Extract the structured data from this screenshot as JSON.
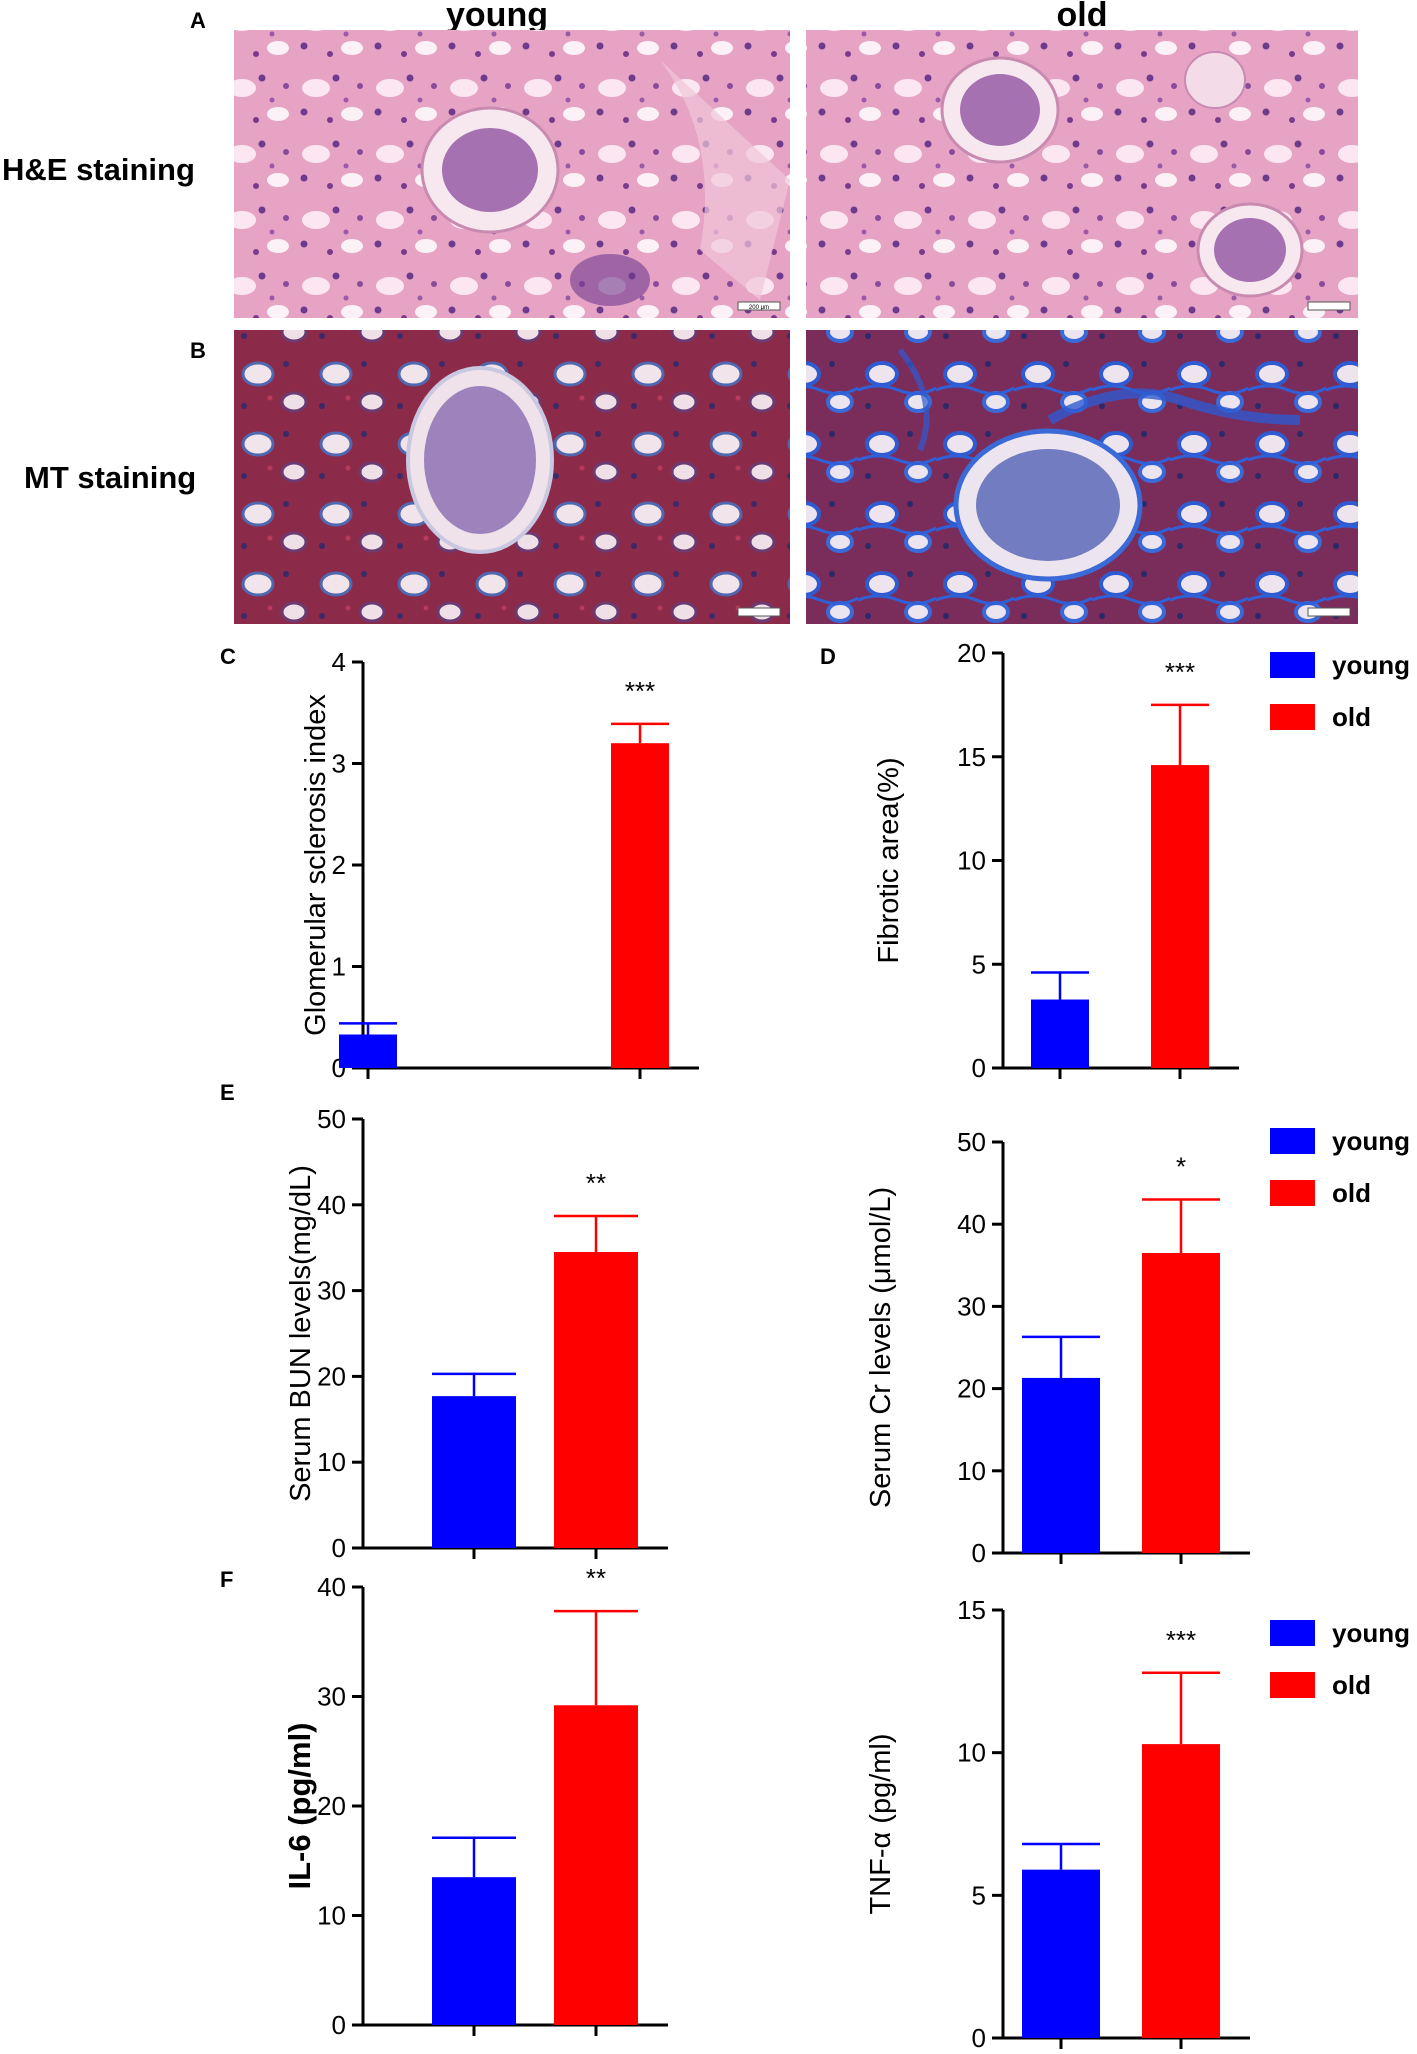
{
  "panels": {
    "A": "A",
    "B": "B",
    "C": "C",
    "D": "D",
    "E": "E",
    "F": "F"
  },
  "micrographs": {
    "columns": [
      "young",
      "old"
    ],
    "rows": [
      "H&E staining",
      "MT staining"
    ],
    "scale_bar_label": "200 μm"
  },
  "legend": {
    "young": "young",
    "old": "old"
  },
  "colors": {
    "young": "#0000ff",
    "old": "#ff0000",
    "he_base": "#e8a6c6",
    "he_dark": "#7a3a8c",
    "mt_base": "#8e2a48",
    "mt_blue": "#3a5fc8"
  },
  "chart_data": [
    {
      "id": "glomerular",
      "panel": "C",
      "type": "bar",
      "categories": [
        "young",
        "old"
      ],
      "values": [
        0.33,
        3.2
      ],
      "errors": [
        0.11,
        0.19
      ],
      "significance": "***",
      "ylabel": "Glomerular sclerosis index",
      "ylim": [
        0,
        4
      ],
      "yticks": [
        0,
        1,
        2,
        3,
        4
      ],
      "legend": false
    },
    {
      "id": "fibrotic",
      "panel": "D",
      "type": "bar",
      "categories": [
        "young",
        "old"
      ],
      "values": [
        3.3,
        14.6
      ],
      "errors": [
        1.3,
        2.9
      ],
      "significance": "***",
      "ylabel": "Fibrotic area(%)",
      "ylim": [
        0,
        20
      ],
      "yticks": [
        0,
        5,
        10,
        15,
        20
      ],
      "legend": true
    },
    {
      "id": "bun",
      "panel": "E",
      "type": "bar",
      "categories": [
        "young",
        "old"
      ],
      "values": [
        17.7,
        34.5
      ],
      "errors": [
        2.6,
        4.2
      ],
      "significance": "**",
      "ylabel": "Serum BUN levels(mg/dL)",
      "ylim": [
        0,
        50
      ],
      "yticks": [
        0,
        10,
        20,
        30,
        40,
        50
      ],
      "legend": false
    },
    {
      "id": "cr",
      "type": "bar",
      "categories": [
        "young",
        "old"
      ],
      "values": [
        21.3,
        36.5
      ],
      "errors": [
        5.0,
        6.5
      ],
      "significance": "*",
      "ylabel": "Serum Cr levels (μmol/L)",
      "ylim": [
        0,
        50
      ],
      "yticks": [
        0,
        10,
        20,
        30,
        40,
        50
      ],
      "legend": true
    },
    {
      "id": "il6",
      "panel": "F",
      "type": "bar",
      "categories": [
        "young",
        "old"
      ],
      "values": [
        13.5,
        29.2
      ],
      "errors": [
        3.6,
        8.6
      ],
      "significance": "**",
      "ylabel": "IL-6 (pg/ml)",
      "ylabel_bold": true,
      "ylim": [
        0,
        40
      ],
      "yticks": [
        0,
        10,
        20,
        30,
        40
      ],
      "legend": false
    },
    {
      "id": "tnf",
      "type": "bar",
      "categories": [
        "young",
        "old"
      ],
      "values": [
        5.9,
        10.3
      ],
      "errors": [
        0.9,
        2.5
      ],
      "significance": "***",
      "ylabel": "TNF-α (pg/ml)",
      "ylim": [
        0,
        15
      ],
      "yticks": [
        0,
        5,
        10,
        15
      ],
      "legend": true
    }
  ]
}
